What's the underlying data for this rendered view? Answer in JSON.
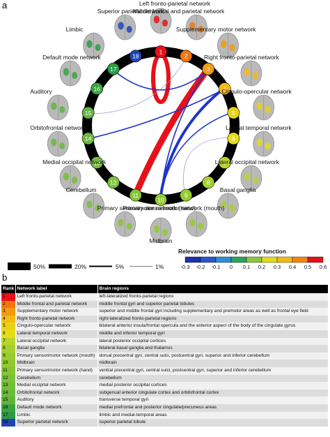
{
  "panel_a_letter": "a",
  "panel_b_letter": "b",
  "colors": {
    "strong_positive": "#e8101a",
    "negative": "#1e35c8",
    "weak_negative": "#8a93d6",
    "ring": "#000000"
  },
  "nodes": [
    {
      "rank": "1",
      "color": "#e8101a"
    },
    {
      "rank": "2",
      "color": "#f2760f"
    },
    {
      "rank": "3",
      "color": "#f29a12"
    },
    {
      "rank": "4",
      "color": "#f2bb14"
    },
    {
      "rank": "5",
      "color": "#e8d218"
    },
    {
      "rank": "6",
      "color": "#e5dd1a"
    },
    {
      "rank": "7",
      "color": "#b7d52a"
    },
    {
      "rank": "8",
      "color": "#a6d02e"
    },
    {
      "rank": "9",
      "color": "#96cb31"
    },
    {
      "rank": "10",
      "color": "#92c933"
    },
    {
      "rank": "11",
      "color": "#86c536"
    },
    {
      "rank": "12",
      "color": "#7cc138"
    },
    {
      "rank": "13",
      "color": "#74bd3a"
    },
    {
      "rank": "14",
      "color": "#6cb93c"
    },
    {
      "rank": "15",
      "color": "#62b33e"
    },
    {
      "rank": "16",
      "color": "#3aa43f"
    },
    {
      "rank": "17",
      "color": "#2d9b45"
    },
    {
      "rank": "18",
      "color": "#1f45b5"
    }
  ],
  "network_labels": [
    "Left fronto-parietal network",
    "Middle frontal and parietal network",
    "Supplementary motor network",
    "Right fronto-parietal network",
    "Cingulo-opercular network",
    "Lateral temporal network",
    "Lateral occipital network",
    "Basal ganglia",
    "Primary sensorimotor network (mouth)",
    "Midbrain",
    "Primary sensorimotor network (hand)",
    "Cerebellum",
    "Medial occipital network",
    "Orbitofrontal network",
    "Auditory",
    "Default mode network",
    "Limbic",
    "Superior parietal network"
  ],
  "connections": [
    {
      "from": 1,
      "to": 1,
      "sign": "positive",
      "strength": "self"
    },
    {
      "from": 3,
      "to": 11,
      "sign": "positive",
      "strength": "50%"
    },
    {
      "from": 4,
      "to": 10,
      "sign": "negative",
      "strength": "20%"
    },
    {
      "from": 3,
      "to": 10,
      "sign": "negative",
      "strength": "5%"
    },
    {
      "from": 5,
      "to": 10,
      "sign": "negative",
      "strength": "5%"
    },
    {
      "from": 4,
      "to": 14,
      "sign": "negative",
      "strength": "5%"
    },
    {
      "from": 3,
      "to": 17,
      "sign": "negative",
      "strength": "5%"
    },
    {
      "from": 2,
      "to": 15,
      "sign": "negative",
      "strength": "1%"
    },
    {
      "from": 6,
      "to": 9,
      "sign": "negative",
      "strength": "1%"
    }
  ],
  "edge_legend": {
    "labels": [
      "50%",
      "20%",
      "5%",
      "1%"
    ]
  },
  "colorbar": {
    "title": "Relevance to working memory function",
    "ticks": [
      "-0.3",
      "-0.2",
      "-0.1",
      "0",
      "0.1",
      "0.2",
      "0.3",
      "0.4",
      "0.5",
      "0.6"
    ],
    "colors": [
      "#1c2fb0",
      "#2756c9",
      "#2f8dd6",
      "#2aa45a",
      "#8cc63a",
      "#e3db1c",
      "#f2bb14",
      "#f2870f",
      "#e8101a"
    ]
  },
  "table": {
    "headers": [
      "Rank",
      "Network label",
      "Brain regions"
    ],
    "rows": [
      {
        "rank": "1",
        "label": "Left fronto-parietal network",
        "regions": "left-lateralized fronto-parietal regions"
      },
      {
        "rank": "2",
        "label": "Middle frontal and parietal network",
        "regions": "middle frontal gyri and superior parietal lobules"
      },
      {
        "rank": "3",
        "label": "Supplementary motor network",
        "regions": "superior and middle frontal gyri including supplementary and premotor areas as well as frontal eye field"
      },
      {
        "rank": "4",
        "label": "Right fronto-parietal network",
        "regions": "right-lateralized fronto-parietal regions"
      },
      {
        "rank": "5",
        "label": "Cingulo-opercular network",
        "regions": "bilateral anterior insula/frontal opercula and the anterior aspect of the body of the cingulate gyrus"
      },
      {
        "rank": "6",
        "label": "Lateral temporal network",
        "regions": "middle and inferior temporal gyri"
      },
      {
        "rank": "7",
        "label": "Lateral occipital network",
        "regions": "lateral posterior occipital cortices"
      },
      {
        "rank": "8",
        "label": "Basal ganglia",
        "regions": "bilateral basal ganglia and thalamus"
      },
      {
        "rank": "9",
        "label": "Primary sensorimotor network (mouth)",
        "regions": "dorsal precentral gyri, central sulci, postcentral gyri, superior and inferior cerebellum"
      },
      {
        "rank": "10",
        "label": "Midbrain",
        "regions": "midbrain"
      },
      {
        "rank": "11",
        "label": "Primary sensorimotor network (hand)",
        "regions": "ventral precentral gyri, central sulci, postcentral gyri, superior and inferior cerebellum"
      },
      {
        "rank": "12",
        "label": "Cerebellum",
        "regions": "cerebellum"
      },
      {
        "rank": "13",
        "label": "Medial occipital network",
        "regions": "medial posterior occipital cortices"
      },
      {
        "rank": "14",
        "label": "Orbitofrontal network",
        "regions": "subgenual anterior cingulate cortex and orbitofrontal cortex"
      },
      {
        "rank": "15",
        "label": "Auditory",
        "regions": "transverse temporal gyri"
      },
      {
        "rank": "16",
        "label": "Default mode network",
        "regions": "medial prefrontal and posterior cingulate/precuneus areas"
      },
      {
        "rank": "17",
        "label": "Limbic",
        "regions": "limbic and medial-temporal areas"
      },
      {
        "rank": "18",
        "label": "Superior parietal network",
        "regions": "superior parietal lobule"
      }
    ]
  }
}
